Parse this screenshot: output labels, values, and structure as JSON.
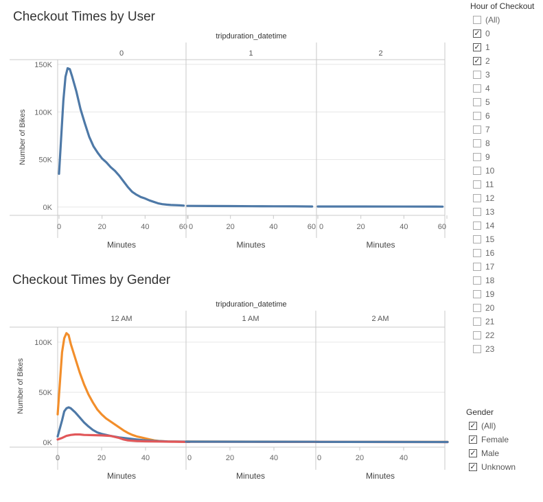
{
  "colors": {
    "male": "#f28e2b",
    "unknown": "#4e79a7",
    "female": "#e15759",
    "user": "#4e79a7"
  },
  "chart_data": [
    {
      "type": "line",
      "title": "Checkout Times by User",
      "column_header": "tripduration_datetime",
      "xlabel": "Minutes",
      "ylabel": "Number of Bikes",
      "xlim": [
        0,
        60
      ],
      "ylim": [
        -8000,
        155000
      ],
      "x_ticks": [
        "0",
        "20",
        "40",
        "60"
      ],
      "y_ticks": [
        {
          "v": 0,
          "label": "0K"
        },
        {
          "v": 50000,
          "label": "50K"
        },
        {
          "v": 100000,
          "label": "100K"
        },
        {
          "v": 150000,
          "label": "150K"
        }
      ],
      "panels": [
        {
          "label": "0",
          "series": [
            {
              "color": "user",
              "points": [
                [
                  0,
                  35000
                ],
                [
                  2,
                  112000
                ],
                [
                  3,
                  137000
                ],
                [
                  4,
                  146000
                ],
                [
                  5,
                  145000
                ],
                [
                  6,
                  138000
                ],
                [
                  8,
                  122000
                ],
                [
                  10,
                  103000
                ],
                [
                  12,
                  88000
                ],
                [
                  14,
                  74000
                ],
                [
                  16,
                  64000
                ],
                [
                  18,
                  57000
                ],
                [
                  20,
                  51000
                ],
                [
                  22,
                  47000
                ],
                [
                  24,
                  42000
                ],
                [
                  26,
                  38000
                ],
                [
                  28,
                  33000
                ],
                [
                  30,
                  27000
                ],
                [
                  32,
                  21000
                ],
                [
                  34,
                  16000
                ],
                [
                  36,
                  13000
                ],
                [
                  38,
                  10500
                ],
                [
                  40,
                  9000
                ],
                [
                  42,
                  7000
                ],
                [
                  44,
                  5500
                ],
                [
                  46,
                  4000
                ],
                [
                  48,
                  3000
                ],
                [
                  50,
                  2500
                ],
                [
                  52,
                  2200
                ],
                [
                  54,
                  2000
                ],
                [
                  56,
                  1800
                ],
                [
                  58,
                  1500
                ]
              ]
            }
          ]
        },
        {
          "label": "1",
          "series": [
            {
              "color": "user",
              "points": [
                [
                  0,
                  1200
                ],
                [
                  10,
                  1100
                ],
                [
                  20,
                  1000
                ],
                [
                  30,
                  900
                ],
                [
                  40,
                  800
                ],
                [
                  50,
                  700
                ],
                [
                  58,
                  600
                ]
              ]
            }
          ]
        },
        {
          "label": "2",
          "series": [
            {
              "color": "user",
              "points": [
                [
                  0,
                  600
                ],
                [
                  20,
                  550
                ],
                [
                  40,
                  500
                ],
                [
                  58,
                  450
                ]
              ]
            }
          ]
        }
      ]
    },
    {
      "type": "line",
      "title": "Checkout Times by Gender",
      "column_header": "tripduration_datetime",
      "xlabel": "Minutes",
      "ylabel": "Number of Bikes",
      "xlim": [
        0,
        60
      ],
      "ylim": [
        -4000,
        115000
      ],
      "x_ticks": [
        "0",
        "20",
        "40"
      ],
      "y_ticks": [
        {
          "v": 0,
          "label": "0K"
        },
        {
          "v": 50000,
          "label": "50K"
        },
        {
          "v": 100000,
          "label": "100K"
        }
      ],
      "panels": [
        {
          "label": "12 AM",
          "series": [
            {
              "color": "male",
              "points": [
                [
                  0,
                  28000
                ],
                [
                  2,
                  90000
                ],
                [
                  3,
                  104000
                ],
                [
                  4,
                  109000
                ],
                [
                  5,
                  107000
                ],
                [
                  6,
                  98000
                ],
                [
                  8,
                  84000
                ],
                [
                  10,
                  70000
                ],
                [
                  12,
                  58000
                ],
                [
                  14,
                  48000
                ],
                [
                  16,
                  40000
                ],
                [
                  18,
                  33000
                ],
                [
                  20,
                  28000
                ],
                [
                  22,
                  24000
                ],
                [
                  24,
                  21000
                ],
                [
                  26,
                  18000
                ],
                [
                  28,
                  15000
                ],
                [
                  30,
                  12000
                ],
                [
                  32,
                  9500
                ],
                [
                  34,
                  7500
                ],
                [
                  36,
                  6000
                ],
                [
                  38,
                  5000
                ],
                [
                  40,
                  4000
                ],
                [
                  42,
                  3000
                ],
                [
                  44,
                  2000
                ],
                [
                  46,
                  1500
                ],
                [
                  50,
                  1000
                ],
                [
                  55,
                  800
                ],
                [
                  60,
                  600
                ]
              ]
            },
            {
              "color": "unknown",
              "points": [
                [
                  0,
                  6000
                ],
                [
                  2,
                  22000
                ],
                [
                  3,
                  31000
                ],
                [
                  4,
                  34000
                ],
                [
                  5,
                  35000
                ],
                [
                  6,
                  34000
                ],
                [
                  8,
                  30000
                ],
                [
                  10,
                  25000
                ],
                [
                  12,
                  20000
                ],
                [
                  14,
                  16000
                ],
                [
                  16,
                  12500
                ],
                [
                  18,
                  10000
                ],
                [
                  20,
                  8500
                ],
                [
                  24,
                  6500
                ],
                [
                  28,
                  5000
                ],
                [
                  32,
                  4000
                ],
                [
                  36,
                  3000
                ],
                [
                  40,
                  2000
                ],
                [
                  44,
                  1500
                ],
                [
                  50,
                  1000
                ],
                [
                  60,
                  800
                ]
              ]
            },
            {
              "color": "female",
              "points": [
                [
                  0,
                  3000
                ],
                [
                  2,
                  4500
                ],
                [
                  4,
                  6500
                ],
                [
                  6,
                  7500
                ],
                [
                  8,
                  8000
                ],
                [
                  10,
                  8000
                ],
                [
                  12,
                  7500
                ],
                [
                  16,
                  7300
                ],
                [
                  20,
                  7000
                ],
                [
                  24,
                  6500
                ],
                [
                  26,
                  5500
                ],
                [
                  28,
                  4500
                ],
                [
                  30,
                  3000
                ],
                [
                  32,
                  2000
                ],
                [
                  36,
                  1400
                ],
                [
                  40,
                  1100
                ],
                [
                  46,
                  900
                ],
                [
                  52,
                  700
                ],
                [
                  60,
                  500
                ]
              ]
            }
          ]
        },
        {
          "label": "1 AM",
          "series": [
            {
              "color": "male",
              "points": [
                [
                  0,
                  900
                ],
                [
                  30,
                  800
                ],
                [
                  60,
                  700
                ]
              ]
            },
            {
              "color": "female",
              "points": [
                [
                  0,
                  700
                ],
                [
                  30,
                  650
                ],
                [
                  60,
                  600
                ]
              ]
            },
            {
              "color": "unknown",
              "points": [
                [
                  0,
                  800
                ],
                [
                  30,
                  700
                ],
                [
                  60,
                  650
                ]
              ]
            }
          ]
        },
        {
          "label": "2 AM",
          "series": [
            {
              "color": "male",
              "points": [
                [
                  0,
                  600
                ],
                [
                  30,
                  550
                ],
                [
                  60,
                  500
                ]
              ]
            },
            {
              "color": "female",
              "points": [
                [
                  0,
                  500
                ],
                [
                  30,
                  450
                ],
                [
                  60,
                  400
                ]
              ]
            },
            {
              "color": "unknown",
              "points": [
                [
                  0,
                  550
                ],
                [
                  30,
                  500
                ],
                [
                  60,
                  450
                ]
              ]
            }
          ]
        }
      ]
    }
  ],
  "hour_filter": {
    "title": "Hour of Checkout",
    "items": [
      {
        "label": "(All)",
        "checked": false
      },
      {
        "label": "0",
        "checked": true
      },
      {
        "label": "1",
        "checked": true
      },
      {
        "label": "2",
        "checked": true
      },
      {
        "label": "3",
        "checked": false
      },
      {
        "label": "4",
        "checked": false
      },
      {
        "label": "5",
        "checked": false
      },
      {
        "label": "6",
        "checked": false
      },
      {
        "label": "7",
        "checked": false
      },
      {
        "label": "8",
        "checked": false
      },
      {
        "label": "9",
        "checked": false
      },
      {
        "label": "10",
        "checked": false
      },
      {
        "label": "11",
        "checked": false
      },
      {
        "label": "12",
        "checked": false
      },
      {
        "label": "13",
        "checked": false
      },
      {
        "label": "14",
        "checked": false
      },
      {
        "label": "15",
        "checked": false
      },
      {
        "label": "16",
        "checked": false
      },
      {
        "label": "17",
        "checked": false
      },
      {
        "label": "18",
        "checked": false
      },
      {
        "label": "19",
        "checked": false
      },
      {
        "label": "20",
        "checked": false
      },
      {
        "label": "21",
        "checked": false
      },
      {
        "label": "22",
        "checked": false
      },
      {
        "label": "23",
        "checked": false
      }
    ]
  },
  "gender_filter": {
    "title": "Gender",
    "items": [
      {
        "label": "(All)",
        "checked": true
      },
      {
        "label": "Female",
        "checked": true
      },
      {
        "label": "Male",
        "checked": true
      },
      {
        "label": "Unknown",
        "checked": true
      }
    ]
  }
}
